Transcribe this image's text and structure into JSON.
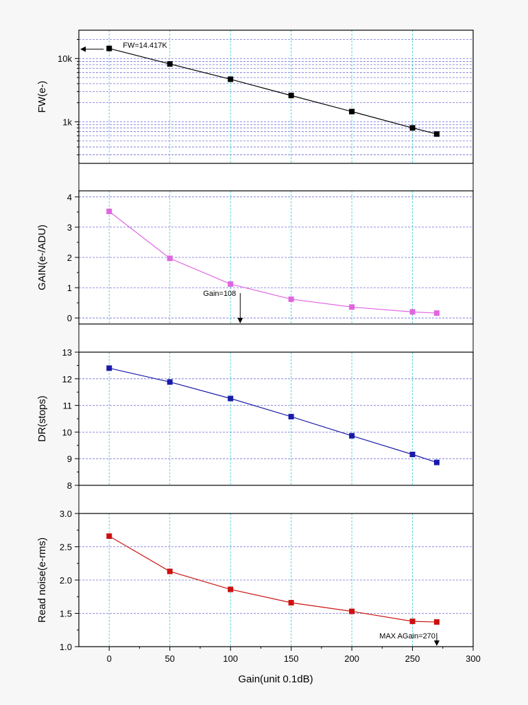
{
  "chart_data": {
    "type": "line",
    "xlabel": "Gain(unit 0.1dB)",
    "xlim": [
      -25,
      300
    ],
    "x_ticks": [
      0,
      50,
      100,
      150,
      200,
      250,
      300
    ],
    "x": [
      0,
      50,
      100,
      150,
      200,
      250,
      270
    ],
    "panels": [
      {
        "name": "fw",
        "ylabel": "FW(e-)",
        "scale": "log",
        "ylim": [
          220,
          28000
        ],
        "y_ticks": [
          1000,
          10000
        ],
        "y_tick_labels": [
          "1k",
          "10k"
        ],
        "color": "#000000",
        "values": [
          14417,
          8200,
          4700,
          2600,
          1450,
          800,
          640
        ],
        "annotations": [
          {
            "text": "FW=14.417K",
            "x": 0,
            "y": 14417,
            "arrow": "left"
          }
        ]
      },
      {
        "name": "gain",
        "ylabel": "GAIN(e-/ADU)",
        "scale": "linear",
        "ylim": [
          -0.2,
          4.2
        ],
        "y_ticks": [
          0,
          1,
          2,
          3,
          4
        ],
        "y_tick_labels": [
          "0",
          "1",
          "2",
          "3",
          "4"
        ],
        "color": "#e066e0",
        "values": [
          3.52,
          1.97,
          1.12,
          0.62,
          0.36,
          0.2,
          0.16
        ],
        "annotations": [
          {
            "text": "Gain=108",
            "x": 108,
            "arrow": "down"
          }
        ]
      },
      {
        "name": "dr",
        "ylabel": "DR(stops)",
        "scale": "linear",
        "ylim": [
          8,
          13
        ],
        "y_ticks": [
          8,
          9,
          10,
          11,
          12,
          13
        ],
        "y_tick_labels": [
          "8",
          "9",
          "10",
          "11",
          "12",
          "13"
        ],
        "color": "#1a1aaa",
        "values": [
          12.4,
          11.88,
          11.26,
          10.58,
          9.86,
          9.16,
          8.86
        ],
        "annotations": []
      },
      {
        "name": "noise",
        "ylabel": "Read noise(e-rms)",
        "scale": "linear",
        "ylim": [
          1.0,
          3.0
        ],
        "y_ticks": [
          1.0,
          1.5,
          2.0,
          2.5,
          3.0
        ],
        "y_tick_labels": [
          "1.0",
          "1.5",
          "2.0",
          "2.5",
          "3.0"
        ],
        "color": "#cc1111",
        "values": [
          2.66,
          2.13,
          1.86,
          1.66,
          1.53,
          1.38,
          1.37
        ],
        "annotations": [
          {
            "text": "MAX AGain=270",
            "x": 270,
            "arrow": "down"
          }
        ]
      }
    ]
  }
}
